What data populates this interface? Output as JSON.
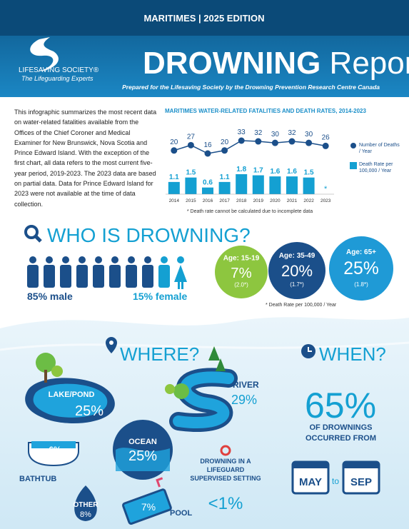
{
  "header": {
    "edition": "MARITIMES  |  2025 EDITION",
    "logo_name": "LIFESAVING SOCIETY®",
    "logo_tagline": "The Lifeguarding Experts",
    "title_bold": "DROWNING",
    "title_light": " Report",
    "subtitle": "Prepared for the Lifesaving Society by the Drowning Prevention Research Centre Canada"
  },
  "intro": "This infographic summarizes the most recent data on water-related fatalities available from the Offices of the Chief Coroner and Medical Examiner for New Brunswick, Nova Scotia and Prince Edward Island. With the exception of the first chart, all data refers to the most current five-year period, 2019-2023. The 2023 data are based on partial data. Data for Prince Edward Island for 2023 were not available at the time of data collection.",
  "trend_chart": {
    "title": "MARITIMES WATER-RELATED FATALITIES AND DEATH RATES, 2014-2023",
    "categories": [
      "2014",
      "2015",
      "2016",
      "2017",
      "2018",
      "2019",
      "2020",
      "2021",
      "2022",
      "2023"
    ],
    "deaths": [
      20,
      27,
      16,
      20,
      33,
      32,
      30,
      32,
      30,
      26
    ],
    "rates": [
      1.1,
      1.5,
      0.6,
      1.1,
      1.8,
      1.7,
      1.6,
      1.6,
      1.5,
      null
    ],
    "missing_rate_label": "*",
    "deaths_color": "#1b4f8a",
    "rates_color": "#14a0d2",
    "legend_deaths": "Number of Deaths / Year",
    "legend_rates": "Death Rate per 100,000 / Year",
    "footnote": "* Death rate cannot be calculated due to incomplete data"
  },
  "who": {
    "title": "WHO IS DROWNING?",
    "male_label": "85% male",
    "female_label": "15% female",
    "age_groups": [
      {
        "label": "Age: 15-19",
        "percent": "7%",
        "rate": "(2.0*)",
        "color": "#8dc63f"
      },
      {
        "label": "Age: 35-49",
        "percent": "20%",
        "rate": "(1.7*)",
        "color": "#1b4f8a"
      },
      {
        "label": "Age: 65+",
        "percent": "25%",
        "rate": "(1.8*)",
        "color": "#1f9ad6"
      }
    ],
    "rate_note": "* Death Rate per 100,000 / Year"
  },
  "where": {
    "title": "WHERE?",
    "lake": "LAKE/POND",
    "lake_pct": "25%",
    "river": "RIVER",
    "river_pct": "29%",
    "ocean": "OCEAN",
    "ocean_pct": "25%",
    "bathtub": "BATHTUB",
    "bathtub_pct": "6%",
    "other": "OTHER",
    "other_pct": "8%",
    "pool": "POOL",
    "pool_pct": "7%",
    "lifeguard": "DROWNING IN A LIFEGUARD SUPERVISED SETTING",
    "lifeguard_pct": "<1%"
  },
  "when": {
    "title": "WHEN?",
    "percent": "65%",
    "text": "OF DROWNINGS OCCURRED FROM",
    "from": "MAY",
    "to": "to",
    "until": "SEP"
  }
}
